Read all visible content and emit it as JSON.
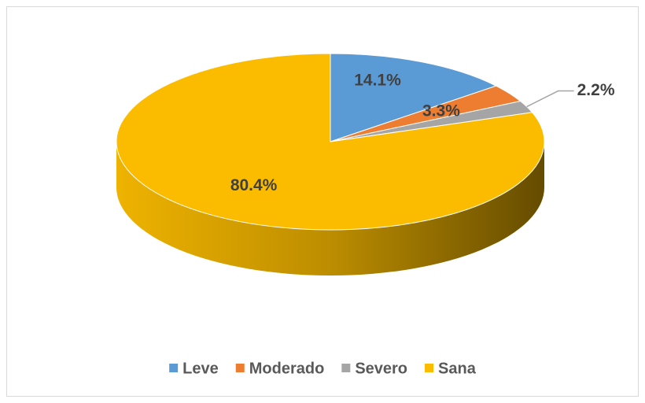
{
  "chart_data": {
    "type": "pie",
    "categories": [
      "Leve",
      "Moderado",
      "Severo",
      "Sana"
    ],
    "values": [
      14.1,
      3.3,
      2.2,
      80.4
    ],
    "value_labels": [
      "14.1%",
      "3.3%",
      "2.2%",
      "80.4%"
    ],
    "colors": [
      "#5b9bd5",
      "#ed7d31",
      "#a5a5a5",
      "#fbbc00"
    ],
    "legend": "bottom"
  }
}
